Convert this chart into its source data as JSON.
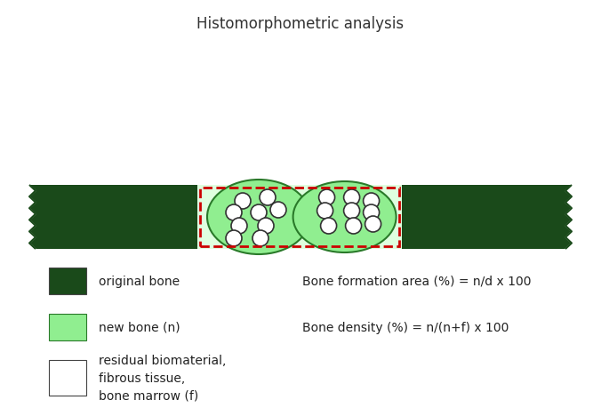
{
  "title": "Histomorphometric analysis",
  "title_fontsize": 12,
  "bg_color": "#ffffff",
  "dark_green": "#1a4a1a",
  "light_green": "#90ee90",
  "light_green_fill": "#dfffdf",
  "red_dash": "#cc0000",
  "formulas": [
    "Bone formation area (%) = n/d x 100",
    "Bone density (%) = n/(n+f) x 100"
  ],
  "formula_fontsize": 10
}
